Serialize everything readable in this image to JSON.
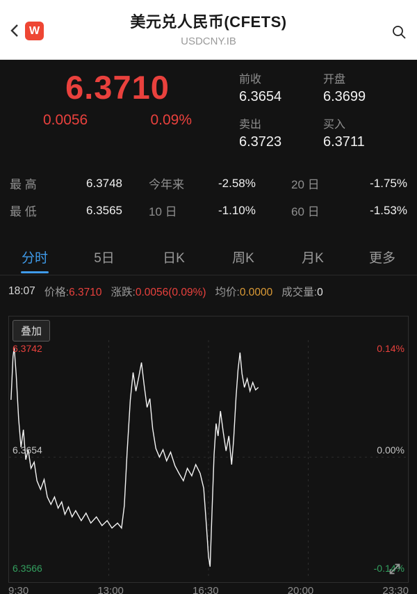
{
  "header": {
    "title": "美元兑人民币(CFETS)",
    "subtitle": "USDCNY.IB",
    "logo_text": "W"
  },
  "quote": {
    "price": "6.3710",
    "change": "0.0056",
    "change_pct": "0.09%",
    "fields": [
      {
        "label": "前收",
        "value": "6.3654"
      },
      {
        "label": "开盘",
        "value": "6.3699"
      },
      {
        "label": "卖出",
        "value": "6.3723"
      },
      {
        "label": "买入",
        "value": "6.3711"
      }
    ],
    "stats_rows": [
      [
        {
          "label": "最 高",
          "value": "6.3748"
        },
        {
          "label": "今年来",
          "value": "-2.58%"
        },
        {
          "label": "20 日",
          "value": "-1.75%"
        }
      ],
      [
        {
          "label": "最 低",
          "value": "6.3565"
        },
        {
          "label": "10 日",
          "value": "-1.10%"
        },
        {
          "label": "60 日",
          "value": "-1.53%"
        }
      ]
    ]
  },
  "tabs": [
    {
      "label": "分时",
      "active": true
    },
    {
      "label": "5日",
      "active": false
    },
    {
      "label": "日K",
      "active": false
    },
    {
      "label": "周K",
      "active": false
    },
    {
      "label": "月K",
      "active": false
    },
    {
      "label": "更多",
      "active": false
    }
  ],
  "info_bar": {
    "time": "18:07",
    "price_label": "价格:",
    "price_value": "6.3710",
    "change_label": "涨跌:",
    "change_value": "0.0056(0.09%)",
    "avg_label": "均价:",
    "avg_value": "0.0000",
    "vol_label": "成交量:",
    "vol_value": "0"
  },
  "chart": {
    "overlay_button": "叠加",
    "y_left": [
      "6.3742",
      "6.3654",
      "6.3566"
    ],
    "y_right": [
      "0.14%",
      "0.00%",
      "-0.14%"
    ],
    "x_ticks": [
      "9:30",
      "13:00",
      "16:30",
      "20:00",
      "23:30"
    ]
  },
  "chart_data": {
    "type": "line",
    "title": "美元兑人民币(CFETS) 分时",
    "series_name": "USDCNY.IB",
    "x_axis_ticks": [
      "9:30",
      "13:00",
      "16:30",
      "20:00",
      "23:30"
    ],
    "y_range": [
      6.3566,
      6.3742
    ],
    "prev_close": 6.3654,
    "day_high": 6.3748,
    "day_low": 6.3565,
    "last": 6.371,
    "plot_range": [
      6.3558,
      6.3748
    ],
    "points": [
      [
        0.005,
        6.37
      ],
      [
        0.01,
        6.3735
      ],
      [
        0.013,
        6.3742
      ],
      [
        0.018,
        6.372
      ],
      [
        0.024,
        6.3685
      ],
      [
        0.03,
        6.3662
      ],
      [
        0.036,
        6.3676
      ],
      [
        0.042,
        6.3652
      ],
      [
        0.048,
        6.366
      ],
      [
        0.055,
        6.3645
      ],
      [
        0.063,
        6.365
      ],
      [
        0.07,
        6.3635
      ],
      [
        0.079,
        6.3628
      ],
      [
        0.088,
        6.3636
      ],
      [
        0.096,
        6.3622
      ],
      [
        0.105,
        6.3616
      ],
      [
        0.114,
        6.3622
      ],
      [
        0.123,
        6.3613
      ],
      [
        0.132,
        6.3618
      ],
      [
        0.14,
        6.3608
      ],
      [
        0.149,
        6.3614
      ],
      [
        0.158,
        6.3606
      ],
      [
        0.167,
        6.3611
      ],
      [
        0.181,
        6.3603
      ],
      [
        0.193,
        6.3609
      ],
      [
        0.205,
        6.3601
      ],
      [
        0.219,
        6.3606
      ],
      [
        0.233,
        6.3599
      ],
      [
        0.246,
        6.3603
      ],
      [
        0.258,
        6.3597
      ],
      [
        0.272,
        6.3601
      ],
      [
        0.282,
        6.3597
      ],
      [
        0.289,
        6.3615
      ],
      [
        0.296,
        6.3658
      ],
      [
        0.304,
        6.37
      ],
      [
        0.311,
        6.3722
      ],
      [
        0.318,
        6.3707
      ],
      [
        0.325,
        6.3718
      ],
      [
        0.332,
        6.373
      ],
      [
        0.339,
        6.3711
      ],
      [
        0.346,
        6.3694
      ],
      [
        0.353,
        6.3701
      ],
      [
        0.36,
        6.3677
      ],
      [
        0.368,
        6.3661
      ],
      [
        0.377,
        6.3654
      ],
      [
        0.386,
        6.366
      ],
      [
        0.395,
        6.3651
      ],
      [
        0.405,
        6.3658
      ],
      [
        0.416,
        6.3647
      ],
      [
        0.426,
        6.3641
      ],
      [
        0.437,
        6.3635
      ],
      [
        0.447,
        6.3645
      ],
      [
        0.458,
        6.3639
      ],
      [
        0.468,
        6.3648
      ],
      [
        0.479,
        6.3641
      ],
      [
        0.488,
        6.3629
      ],
      [
        0.495,
        6.3598
      ],
      [
        0.5,
        6.3574
      ],
      [
        0.504,
        6.3566
      ],
      [
        0.509,
        6.3612
      ],
      [
        0.514,
        6.3656
      ],
      [
        0.519,
        6.3681
      ],
      [
        0.524,
        6.3671
      ],
      [
        0.53,
        6.3691
      ],
      [
        0.537,
        6.3674
      ],
      [
        0.544,
        6.3659
      ],
      [
        0.551,
        6.3671
      ],
      [
        0.558,
        6.3648
      ],
      [
        0.563,
        6.3668
      ],
      [
        0.569,
        6.3702
      ],
      [
        0.574,
        6.3724
      ],
      [
        0.579,
        6.3738
      ],
      [
        0.584,
        6.3721
      ],
      [
        0.59,
        6.371
      ],
      [
        0.597,
        6.3717
      ],
      [
        0.604,
        6.3707
      ],
      [
        0.611,
        6.3714
      ],
      [
        0.618,
        6.3708
      ],
      [
        0.625,
        6.371
      ]
    ]
  },
  "colors": {
    "red": "#e9413d",
    "green": "#33a05f",
    "orange": "#dc9b36",
    "blue": "#3f9bea"
  }
}
